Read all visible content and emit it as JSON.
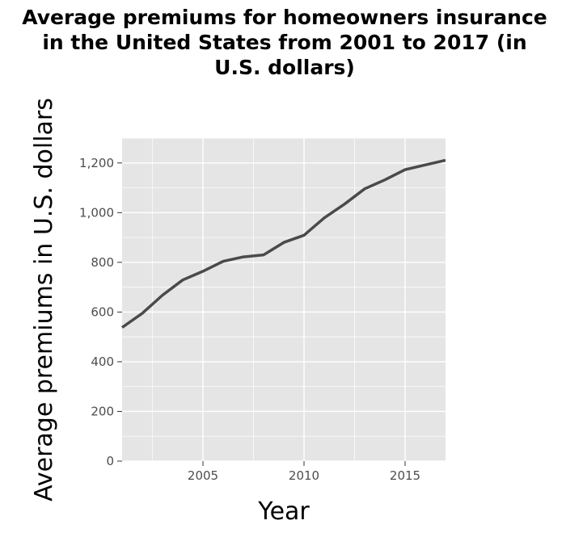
{
  "chart_data": {
    "type": "line",
    "title": "Average premiums for homeowners insurance in the United States from 2001 to 2017 (in U.S. dollars)",
    "title_lines": [
      "Average premiums for homeowners insurance",
      "in the United States from 2001 to 2017 (in",
      "U.S. dollars)"
    ],
    "xlabel": "Year",
    "ylabel": "Average premiums in U.S. dollars",
    "xlim": [
      2001,
      2017
    ],
    "ylim": [
      0,
      1300
    ],
    "x_ticks": [
      2005,
      2010,
      2015
    ],
    "y_ticks": [
      0,
      200,
      400,
      600,
      800,
      1000,
      1200
    ],
    "y_tick_labels": [
      "0",
      "200",
      "400",
      "600",
      "800",
      "1,000",
      "1,200"
    ],
    "grid": true,
    "legend": "none",
    "colors": {
      "panel": "#e5e5e5",
      "grid": "#ffffff",
      "line": "#4a4a4a",
      "tick": "#4d4d4d"
    },
    "x": [
      2001,
      2002,
      2003,
      2004,
      2005,
      2006,
      2007,
      2008,
      2009,
      2010,
      2011,
      2012,
      2013,
      2014,
      2015,
      2016,
      2017
    ],
    "values": [
      538,
      595,
      668,
      729,
      764,
      804,
      822,
      830,
      880,
      909,
      979,
      1034,
      1096,
      1132,
      1173,
      1192,
      1211
    ]
  }
}
